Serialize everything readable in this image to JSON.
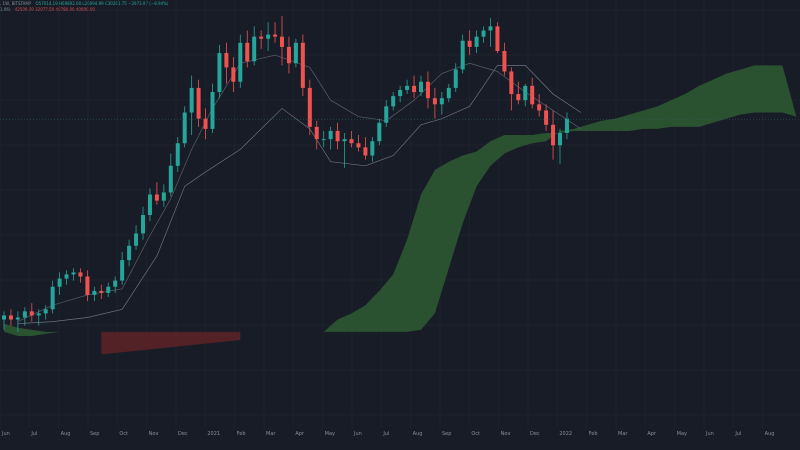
{
  "legend": {
    "row1": {
      "prefix": ", 1W, BITSTAMP",
      "values": "O57014.19  H69892.00  L26094.99  C30261.75  −2973.97 (−8.94%)"
    },
    "row2": {
      "lead": "1.96)",
      "values": "42509.69  32077.50  40780.00  40000.00"
    }
  },
  "colors": {
    "background": "#181c27",
    "grid": "#232836",
    "candle_up": "#26a69a",
    "candle_down": "#ef5350",
    "cloud_bull": "#2e5a33",
    "cloud_bear": "#5e2327",
    "line": "#6c7080",
    "axis_text": "#8b8f9c"
  },
  "chart_data": {
    "type": "candlestick",
    "indicator": "Ichimoku Cloud",
    "x_ticks": [
      "Jun",
      "Jul",
      "Aug",
      "Sep",
      "Oct",
      "Nov",
      "Dec",
      "2021",
      "Feb",
      "Mar",
      "Apr",
      "May",
      "Jun",
      "Jul",
      "Aug",
      "Sep",
      "Oct",
      "Nov",
      "Dec",
      "2022",
      "Feb",
      "Mar",
      "Apr",
      "May",
      "Jun",
      "Jul",
      "Aug"
    ],
    "y_range": [
      0,
      100
    ],
    "candles": [
      {
        "o": 24.5,
        "h": 26.5,
        "l": 22,
        "c": 25.5
      },
      {
        "o": 25.5,
        "h": 27,
        "l": 23,
        "c": 24.5
      },
      {
        "o": 24.5,
        "h": 26.5,
        "l": 21.5,
        "c": 25
      },
      {
        "o": 25,
        "h": 27.5,
        "l": 23,
        "c": 26.5
      },
      {
        "o": 26.5,
        "h": 28.5,
        "l": 24,
        "c": 25.5
      },
      {
        "o": 25.5,
        "h": 27,
        "l": 23,
        "c": 26
      },
      {
        "o": 26,
        "h": 28,
        "l": 24.5,
        "c": 27
      },
      {
        "o": 27,
        "h": 34,
        "l": 26,
        "c": 32.5
      },
      {
        "o": 32.5,
        "h": 36,
        "l": 30.5,
        "c": 34.5
      },
      {
        "o": 34.5,
        "h": 36.5,
        "l": 33,
        "c": 35.5
      },
      {
        "o": 35.5,
        "h": 37,
        "l": 34,
        "c": 36
      },
      {
        "o": 36,
        "h": 37,
        "l": 33.5,
        "c": 35
      },
      {
        "o": 35,
        "h": 36.5,
        "l": 29,
        "c": 30.5
      },
      {
        "o": 30.5,
        "h": 32.5,
        "l": 29,
        "c": 31.5
      },
      {
        "o": 31.5,
        "h": 33,
        "l": 29.5,
        "c": 31
      },
      {
        "o": 31,
        "h": 33.5,
        "l": 30,
        "c": 32.5
      },
      {
        "o": 32.5,
        "h": 35,
        "l": 31,
        "c": 34
      },
      {
        "o": 34,
        "h": 41,
        "l": 33,
        "c": 39
      },
      {
        "o": 39,
        "h": 44,
        "l": 37.5,
        "c": 42.5
      },
      {
        "o": 42.5,
        "h": 47.5,
        "l": 41.5,
        "c": 45.5
      },
      {
        "o": 45.5,
        "h": 52,
        "l": 44,
        "c": 50
      },
      {
        "o": 50,
        "h": 56.5,
        "l": 48.5,
        "c": 55
      },
      {
        "o": 55,
        "h": 58,
        "l": 52.5,
        "c": 53.5
      },
      {
        "o": 53.5,
        "h": 57.5,
        "l": 52,
        "c": 55.5
      },
      {
        "o": 55.5,
        "h": 65,
        "l": 54.5,
        "c": 62
      },
      {
        "o": 62,
        "h": 69,
        "l": 60.5,
        "c": 67.5
      },
      {
        "o": 67.5,
        "h": 76.5,
        "l": 66.5,
        "c": 75
      },
      {
        "o": 75,
        "h": 84,
        "l": 69.5,
        "c": 81
      },
      {
        "o": 81,
        "h": 83,
        "l": 71.5,
        "c": 73.5
      },
      {
        "o": 73.5,
        "h": 76,
        "l": 68.5,
        "c": 71
      },
      {
        "o": 71,
        "h": 82,
        "l": 70,
        "c": 80
      },
      {
        "o": 80,
        "h": 91.5,
        "l": 78.5,
        "c": 89.5
      },
      {
        "o": 89.5,
        "h": 92,
        "l": 82,
        "c": 86
      },
      {
        "o": 86,
        "h": 88.5,
        "l": 80,
        "c": 82.5
      },
      {
        "o": 82.5,
        "h": 94,
        "l": 81,
        "c": 92
      },
      {
        "o": 92,
        "h": 95,
        "l": 86,
        "c": 87.5
      },
      {
        "o": 87.5,
        "h": 96,
        "l": 86.5,
        "c": 93.5
      },
      {
        "o": 93.5,
        "h": 95,
        "l": 90.5,
        "c": 93
      },
      {
        "o": 93,
        "h": 97,
        "l": 90,
        "c": 94
      },
      {
        "o": 94,
        "h": 97,
        "l": 92,
        "c": 93.5
      },
      {
        "o": 93.5,
        "h": 98.5,
        "l": 86.5,
        "c": 91
      },
      {
        "o": 91,
        "h": 93.5,
        "l": 84.5,
        "c": 87
      },
      {
        "o": 87,
        "h": 93,
        "l": 86,
        "c": 92
      },
      {
        "o": 92,
        "h": 94,
        "l": 79,
        "c": 81
      },
      {
        "o": 81,
        "h": 83,
        "l": 69.5,
        "c": 71.5
      },
      {
        "o": 71.5,
        "h": 73,
        "l": 66,
        "c": 68.5
      },
      {
        "o": 68.5,
        "h": 70.5,
        "l": 66.5,
        "c": 68.5
      },
      {
        "o": 68.5,
        "h": 71.5,
        "l": 66,
        "c": 70.5
      },
      {
        "o": 70.5,
        "h": 72.5,
        "l": 66,
        "c": 68
      },
      {
        "o": 68,
        "h": 70,
        "l": 61.5,
        "c": 68.5
      },
      {
        "o": 68.5,
        "h": 70.5,
        "l": 66.5,
        "c": 67.5
      },
      {
        "o": 67.5,
        "h": 69.5,
        "l": 65.5,
        "c": 66.5
      },
      {
        "o": 66.5,
        "h": 69,
        "l": 63.5,
        "c": 64.5
      },
      {
        "o": 64.5,
        "h": 69,
        "l": 63,
        "c": 68
      },
      {
        "o": 68,
        "h": 73.5,
        "l": 67,
        "c": 72.5
      },
      {
        "o": 72.5,
        "h": 78,
        "l": 71.5,
        "c": 76.5
      },
      {
        "o": 76.5,
        "h": 80,
        "l": 75.5,
        "c": 79
      },
      {
        "o": 79,
        "h": 81.5,
        "l": 77.5,
        "c": 80.5
      },
      {
        "o": 80.5,
        "h": 83,
        "l": 79.5,
        "c": 81.5
      },
      {
        "o": 81.5,
        "h": 84,
        "l": 78.5,
        "c": 80
      },
      {
        "o": 80,
        "h": 84,
        "l": 79,
        "c": 82.5
      },
      {
        "o": 82.5,
        "h": 85,
        "l": 76,
        "c": 78.5
      },
      {
        "o": 78.5,
        "h": 81,
        "l": 73.5,
        "c": 77
      },
      {
        "o": 77,
        "h": 80,
        "l": 74.5,
        "c": 78.5
      },
      {
        "o": 78.5,
        "h": 82,
        "l": 77.5,
        "c": 81
      },
      {
        "o": 81,
        "h": 87,
        "l": 80,
        "c": 85.5
      },
      {
        "o": 85.5,
        "h": 94,
        "l": 84.5,
        "c": 92.5
      },
      {
        "o": 92.5,
        "h": 95,
        "l": 89,
        "c": 91
      },
      {
        "o": 91,
        "h": 95,
        "l": 89.5,
        "c": 93.5
      },
      {
        "o": 93.5,
        "h": 96,
        "l": 92,
        "c": 95
      },
      {
        "o": 95,
        "h": 98,
        "l": 91,
        "c": 96
      },
      {
        "o": 96,
        "h": 97,
        "l": 89.5,
        "c": 90
      },
      {
        "o": 90,
        "h": 92,
        "l": 84,
        "c": 85
      },
      {
        "o": 85,
        "h": 86,
        "l": 75.5,
        "c": 79.5
      },
      {
        "o": 79.5,
        "h": 82.5,
        "l": 77,
        "c": 78
      },
      {
        "o": 78,
        "h": 82,
        "l": 76.5,
        "c": 81.5
      },
      {
        "o": 81.5,
        "h": 83.5,
        "l": 76,
        "c": 77
      },
      {
        "o": 77,
        "h": 79.5,
        "l": 74,
        "c": 75.5
      },
      {
        "o": 75.5,
        "h": 77,
        "l": 70.5,
        "c": 72
      },
      {
        "o": 72,
        "h": 75.5,
        "l": 63.5,
        "c": 67
      },
      {
        "o": 67,
        "h": 71,
        "l": 62.5,
        "c": 70
      },
      {
        "o": 70,
        "h": 75,
        "l": 68.5,
        "c": 73.5
      }
    ],
    "tenkan": [
      [
        2,
        24
      ],
      [
        7,
        28
      ],
      [
        12,
        30.5
      ],
      [
        17,
        32
      ],
      [
        21,
        45
      ],
      [
        24,
        54
      ],
      [
        27,
        66
      ],
      [
        30,
        76
      ],
      [
        34,
        87
      ],
      [
        39,
        89
      ],
      [
        44,
        86
      ],
      [
        47,
        78
      ],
      [
        51,
        74
      ],
      [
        55,
        73
      ],
      [
        59,
        78
      ],
      [
        63,
        84.5
      ],
      [
        67,
        87
      ],
      [
        71,
        85
      ],
      [
        75,
        80
      ],
      [
        79,
        75.5
      ],
      [
        83,
        71
      ]
    ],
    "kijun": [
      [
        2,
        23.5
      ],
      [
        7,
        24
      ],
      [
        12,
        25
      ],
      [
        17,
        27
      ],
      [
        22,
        40
      ],
      [
        26,
        57
      ],
      [
        29,
        60.5
      ],
      [
        34,
        66
      ],
      [
        40,
        76
      ],
      [
        44,
        71
      ],
      [
        47,
        63
      ],
      [
        52,
        62
      ],
      [
        56,
        64.5
      ],
      [
        60,
        72
      ],
      [
        63,
        73.5
      ],
      [
        67,
        76.5
      ],
      [
        71,
        86.5
      ],
      [
        75,
        86.5
      ],
      [
        79,
        79.5
      ],
      [
        83,
        75
      ]
    ],
    "cloud": {
      "x": [
        0,
        2,
        4,
        6,
        8,
        10,
        12,
        14,
        16,
        18,
        20,
        22,
        24,
        26,
        28,
        30,
        32,
        34,
        36,
        38,
        40,
        42,
        44,
        46,
        48,
        50,
        52,
        54,
        56,
        58,
        60,
        62,
        64,
        66,
        68,
        70,
        72,
        74,
        76,
        78,
        80,
        82,
        84,
        86,
        88,
        90,
        92,
        94,
        96,
        98,
        100,
        102,
        104,
        106,
        108,
        110,
        112,
        114
      ],
      "span_a": [
        23.5,
        22.5,
        22,
        21.5,
        21.5,
        21.5,
        21.5,
        21.5,
        21.5,
        21.5,
        21.5,
        21.5,
        21.5,
        21.5,
        21.5,
        21.5,
        21.5,
        21.5,
        21.5,
        21.5,
        21.5,
        21.5,
        21.5,
        21.5,
        24.5,
        26,
        28,
        31.5,
        35.5,
        44,
        55,
        61,
        63,
        64.5,
        65.5,
        68,
        69.5,
        69.5,
        69.5,
        70,
        70,
        70.5,
        70.5,
        70.5,
        70.5,
        70.5,
        71,
        71,
        71.5,
        71.5,
        71.5,
        72.5,
        73.5,
        74.5,
        75,
        75,
        75,
        74
      ],
      "span_b": [
        21.5,
        20.5,
        20.5,
        21,
        21.5,
        21.5,
        21.5,
        21.5,
        21.5,
        21.5,
        21.5,
        21.5,
        21.5,
        21.5,
        21.5,
        21.5,
        21.5,
        21.5,
        21.5,
        21.5,
        21.5,
        21.5,
        21.5,
        21.5,
        21.5,
        21.5,
        21.5,
        21.5,
        21.5,
        21.5,
        22,
        26,
        37,
        48,
        57,
        62,
        65,
        66.5,
        67.5,
        68,
        70.5,
        71,
        72,
        73,
        73.5,
        74.5,
        75.5,
        76.5,
        78,
        79.5,
        81.5,
        83,
        84.5,
        85.5,
        86.5,
        86.5,
        86.5,
        74
      ],
      "bear_segment": {
        "x": [
          14,
          34
        ],
        "span_a": [
          21.5,
          21.5
        ],
        "span_b": [
          16,
          19.5
        ]
      }
    }
  }
}
